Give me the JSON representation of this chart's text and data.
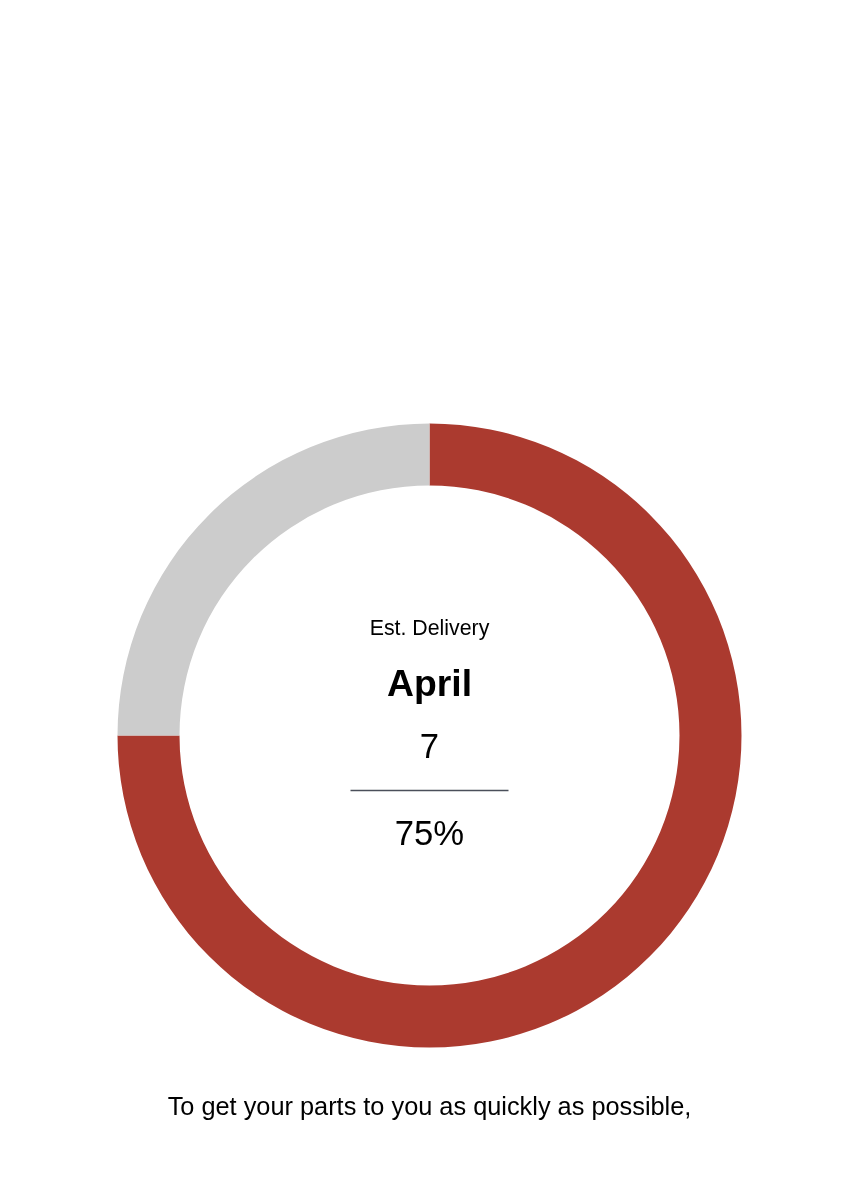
{
  "chart_data": {
    "type": "donut",
    "categories": [
      null,
      null
    ],
    "values": [
      75,
      25
    ],
    "colors": [
      "#ab3a2f",
      "#cccccc"
    ],
    "value_labels": [
      "75%",
      null
    ],
    "annotations": [
      "Est. Delivery",
      "April",
      "7",
      "To get your parts to you as quickly as possible,"
    ]
  }
}
